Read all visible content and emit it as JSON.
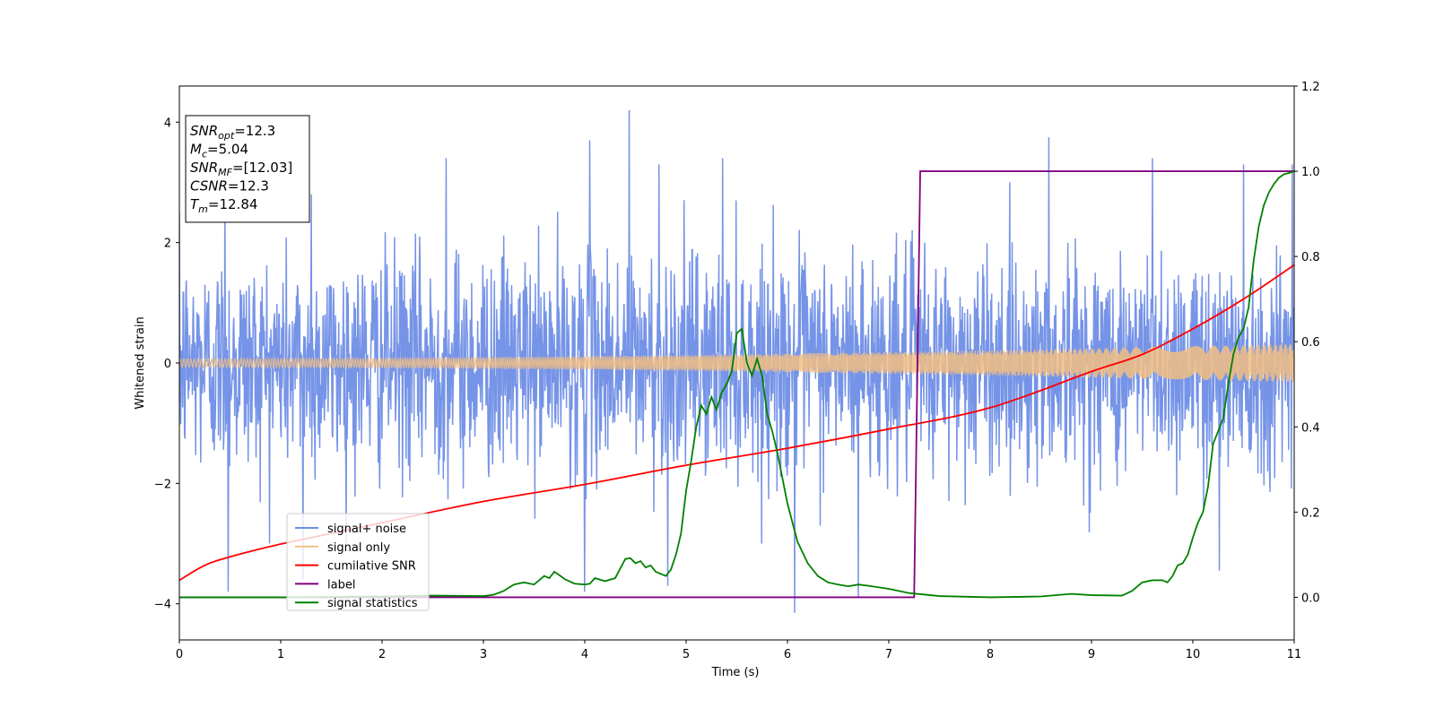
{
  "chart_data": {
    "type": "line",
    "xlabel": "Time (s)",
    "ylabel": "Whitened strain",
    "xlim": [
      0,
      11
    ],
    "ylim": [
      -4.6,
      4.6
    ],
    "y2lim": [
      -0.1,
      1.2
    ],
    "x_ticks": [
      "0",
      "1",
      "2",
      "3",
      "4",
      "5",
      "6",
      "7",
      "8",
      "9",
      "10",
      "11"
    ],
    "y_ticks": [
      "4",
      "2",
      "0",
      "−2",
      "−4"
    ],
    "y_tick_values": [
      4,
      2,
      0,
      -2,
      -4
    ],
    "y2_ticks": [
      "1.2",
      "1.0",
      "0.8",
      "0.6",
      "0.4",
      "0.2",
      "0.0"
    ],
    "y2_tick_values": [
      1.2,
      1.0,
      0.8,
      0.6,
      0.4,
      0.2,
      0.0
    ],
    "grid": false,
    "legend_placement": "lower-left",
    "annotation_lines": [
      {
        "base": "SNR",
        "sub": "opt",
        "rest": "=12.3"
      },
      {
        "base": "M",
        "sub": "c",
        "rest": "=5.04"
      },
      {
        "base": "SNR",
        "sub": "MF",
        "rest": "=[12.03]"
      },
      {
        "base": "CSNR",
        "sub": "",
        "rest": "=12.3"
      },
      {
        "base": "T",
        "sub": "m",
        "rest": "=12.84"
      }
    ],
    "series": [
      {
        "name": "signal+ noise",
        "axis": "left",
        "color": "#6f8ee6",
        "description": "noise band approx +/-1.7 (std ~0.9) with spikes up to 4.2 (at t=4.44) and down to -4.15 (at t=6.07)",
        "envelope_std": 0.9,
        "peaks": [
          {
            "x": 0.45,
            "y": 2.9
          },
          {
            "x": 1.3,
            "y": 2.8
          },
          {
            "x": 2.63,
            "y": 3.4
          },
          {
            "x": 4.05,
            "y": 3.7
          },
          {
            "x": 4.44,
            "y": 4.2
          },
          {
            "x": 4.73,
            "y": 3.3
          },
          {
            "x": 5.36,
            "y": 3.4
          },
          {
            "x": 8.58,
            "y": 3.75
          },
          {
            "x": 9.6,
            "y": 3.4
          },
          {
            "x": 10.5,
            "y": 3.3
          },
          {
            "x": 10.98,
            "y": 3.3
          },
          {
            "x": 0.48,
            "y": -3.8
          },
          {
            "x": 1.22,
            "y": -3.6
          },
          {
            "x": 4.0,
            "y": -3.8
          },
          {
            "x": 4.82,
            "y": -3.7
          },
          {
            "x": 6.07,
            "y": -4.15
          },
          {
            "x": 6.7,
            "y": -3.9
          },
          {
            "x": 10.26,
            "y": -3.45
          }
        ]
      },
      {
        "name": "signal only",
        "axis": "left",
        "color": "#f2be83",
        "description": "chirp oscillation with amplitude growing from ~0.07 at t=0 to ~0.32 at t=11",
        "amplitude_start": 0.07,
        "amplitude_end": 0.32
      },
      {
        "name": "cumilative SNR",
        "axis": "right",
        "color": "#ff0000",
        "x": [
          0,
          0.25,
          0.5,
          1,
          1.5,
          2,
          3,
          4,
          5,
          6,
          7,
          8,
          9,
          9.5,
          10,
          10.5,
          11
        ],
        "y": [
          0.04,
          0.075,
          0.095,
          0.125,
          0.15,
          0.175,
          0.225,
          0.265,
          0.31,
          0.35,
          0.395,
          0.445,
          0.53,
          0.57,
          0.63,
          0.7,
          0.78
        ]
      },
      {
        "name": "label",
        "axis": "right",
        "color": "#800080",
        "x": [
          0,
          7.25,
          7.31,
          11
        ],
        "y": [
          0,
          0,
          1,
          1
        ]
      },
      {
        "name": "signal statistics",
        "axis": "right",
        "color": "#008000",
        "x": [
          0,
          1,
          2,
          2.5,
          3,
          3.1,
          3.2,
          3.3,
          3.4,
          3.5,
          3.6,
          3.65,
          3.7,
          3.75,
          3.8,
          3.9,
          4.0,
          4.05,
          4.1,
          4.2,
          4.3,
          4.4,
          4.45,
          4.5,
          4.55,
          4.6,
          4.65,
          4.7,
          4.75,
          4.8,
          4.85,
          4.9,
          4.95,
          5.0,
          5.05,
          5.1,
          5.15,
          5.2,
          5.25,
          5.3,
          5.35,
          5.4,
          5.45,
          5.5,
          5.55,
          5.6,
          5.65,
          5.7,
          5.75,
          5.8,
          5.85,
          5.9,
          5.95,
          6.0,
          6.1,
          6.2,
          6.3,
          6.4,
          6.5,
          6.6,
          6.7,
          6.8,
          7.0,
          7.2,
          7.5,
          8.0,
          8.5,
          8.8,
          9.0,
          9.3,
          9.4,
          9.5,
          9.6,
          9.7,
          9.75,
          9.8,
          9.85,
          9.9,
          9.95,
          10.0,
          10.05,
          10.1,
          10.15,
          10.2,
          10.25,
          10.3,
          10.35,
          10.4,
          10.45,
          10.5,
          10.55,
          10.6,
          10.65,
          10.7,
          10.75,
          10.8,
          10.85,
          10.9,
          10.95,
          11.0
        ],
        "y": [
          0.0,
          0.0,
          0.002,
          0.004,
          0.003,
          0.006,
          0.015,
          0.03,
          0.035,
          0.03,
          0.05,
          0.045,
          0.06,
          0.052,
          0.043,
          0.032,
          0.03,
          0.032,
          0.045,
          0.038,
          0.045,
          0.09,
          0.092,
          0.08,
          0.085,
          0.07,
          0.075,
          0.06,
          0.055,
          0.05,
          0.065,
          0.1,
          0.15,
          0.25,
          0.32,
          0.4,
          0.45,
          0.43,
          0.47,
          0.44,
          0.48,
          0.5,
          0.53,
          0.62,
          0.63,
          0.55,
          0.52,
          0.56,
          0.52,
          0.43,
          0.39,
          0.34,
          0.28,
          0.22,
          0.13,
          0.08,
          0.05,
          0.035,
          0.03,
          0.026,
          0.03,
          0.027,
          0.02,
          0.01,
          0.003,
          0.0,
          0.002,
          0.008,
          0.005,
          0.004,
          0.015,
          0.035,
          0.04,
          0.04,
          0.035,
          0.05,
          0.075,
          0.08,
          0.1,
          0.14,
          0.175,
          0.2,
          0.26,
          0.36,
          0.39,
          0.42,
          0.5,
          0.57,
          0.61,
          0.63,
          0.68,
          0.79,
          0.87,
          0.92,
          0.95,
          0.97,
          0.985,
          0.993,
          0.996,
          1.0
        ]
      }
    ]
  }
}
